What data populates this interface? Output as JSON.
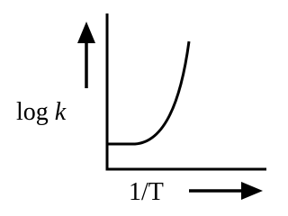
{
  "axes": {
    "y_label": {
      "text": "log",
      "variable": "k"
    },
    "x_label": "1/T"
  }
}
